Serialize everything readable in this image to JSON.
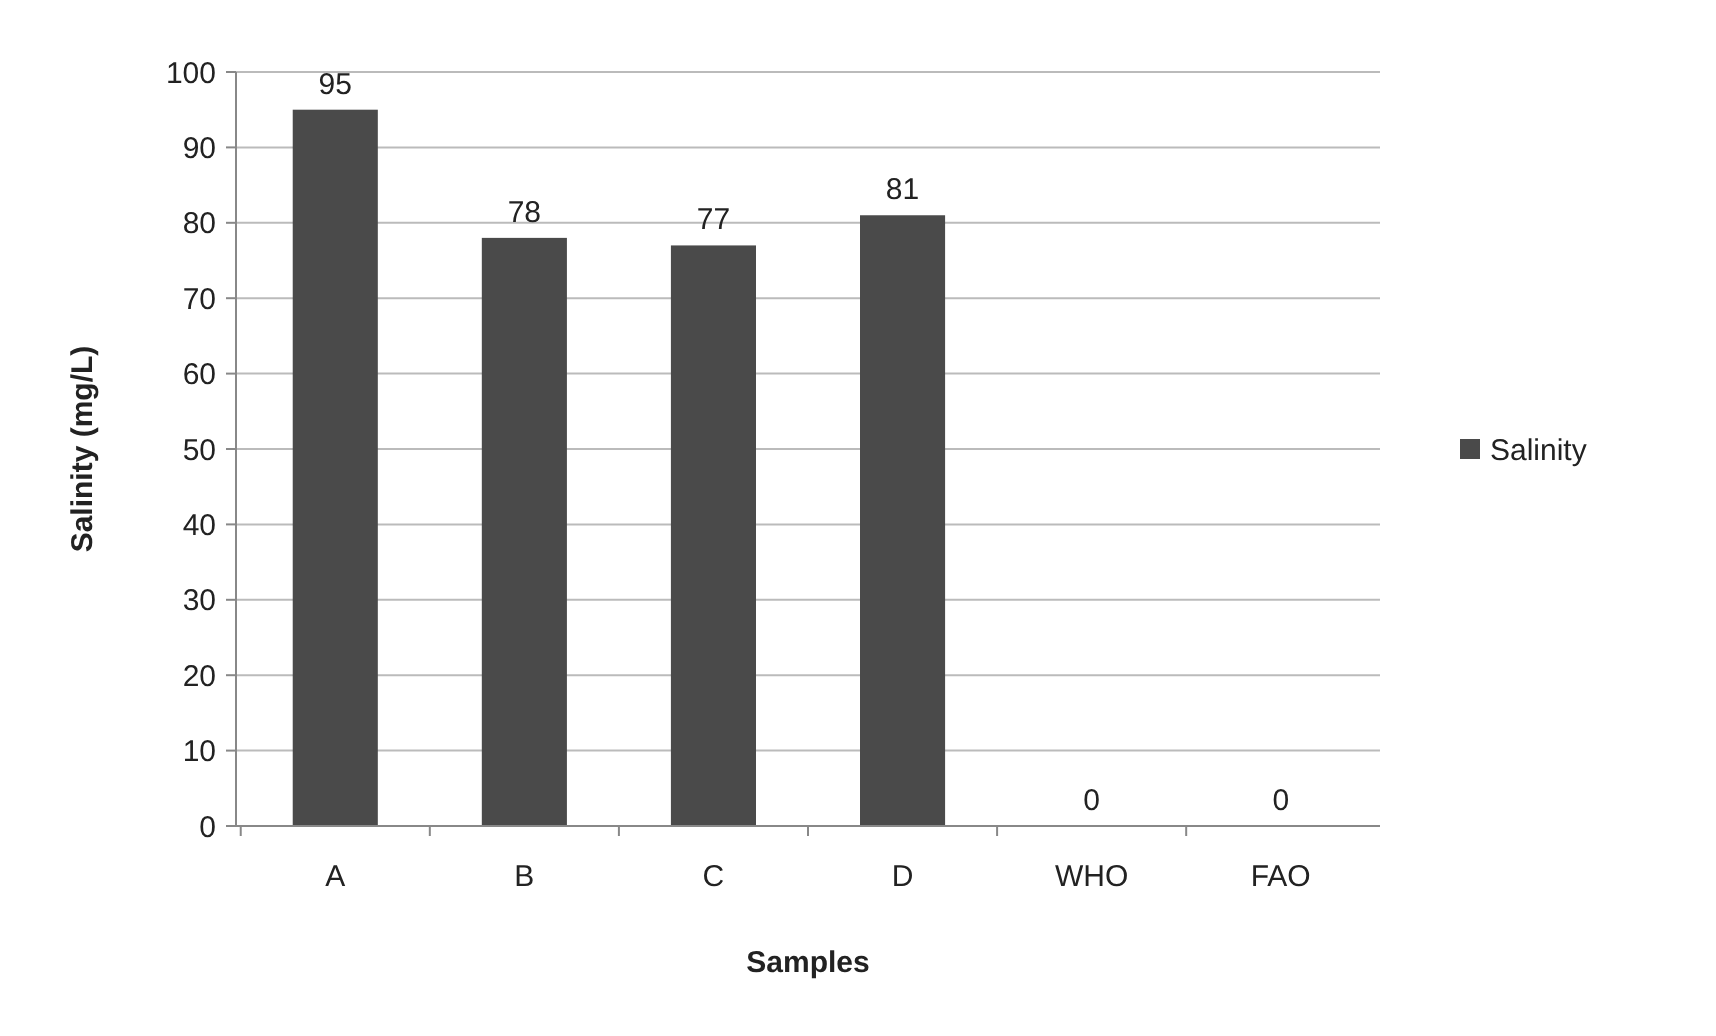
{
  "chart_data": {
    "type": "bar",
    "xlabel": "Samples",
    "ylabel": "Salinity (mg/L)",
    "categories": [
      "A",
      "B",
      "C",
      "D",
      "WHO",
      "FAO"
    ],
    "series": [
      {
        "name": "Salinity",
        "color": "#4a4a4a",
        "values": [
          95,
          78,
          77,
          81,
          0,
          0
        ]
      }
    ],
    "ylim": [
      0,
      100
    ],
    "yticks": [
      0,
      10,
      20,
      30,
      40,
      50,
      60,
      70,
      80,
      90,
      100
    ],
    "grid": "y",
    "legend": "right",
    "data_labels": true
  }
}
